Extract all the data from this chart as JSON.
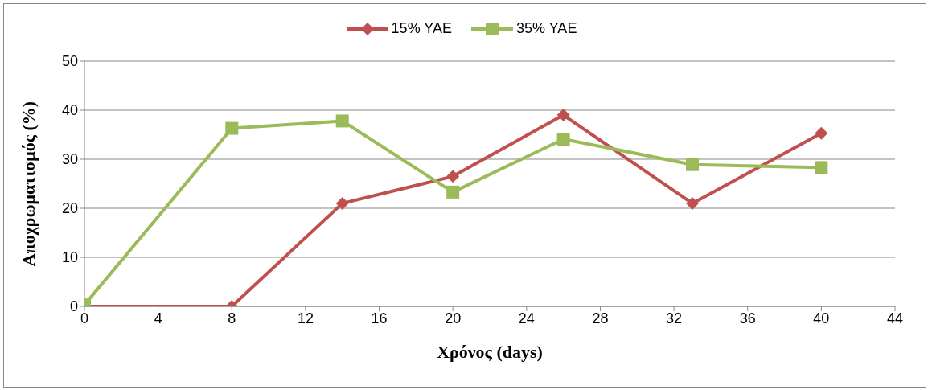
{
  "chart_data": {
    "type": "line",
    "xlabel": "Χρόνος (days)",
    "ylabel": "Αποχρωματισμός (%)",
    "x": [
      0,
      8,
      14,
      20,
      26,
      33,
      40
    ],
    "xlim": [
      0,
      44
    ],
    "xticks": [
      0,
      4,
      8,
      12,
      16,
      20,
      24,
      28,
      32,
      36,
      40,
      44
    ],
    "ylim": [
      0,
      50
    ],
    "yticks": [
      0,
      10,
      20,
      30,
      40,
      50
    ],
    "grid": "y",
    "legend": "top",
    "series": [
      {
        "name": "15% YAE",
        "color": "#c0504d",
        "marker": "diamond",
        "values": [
          0,
          0,
          21,
          26.5,
          39,
          21,
          35.3
        ]
      },
      {
        "name": "35% YAE",
        "color": "#9bbb59",
        "marker": "square",
        "values": [
          0.3,
          36.3,
          37.8,
          23.3,
          34.1,
          28.9,
          28.3
        ]
      }
    ]
  }
}
